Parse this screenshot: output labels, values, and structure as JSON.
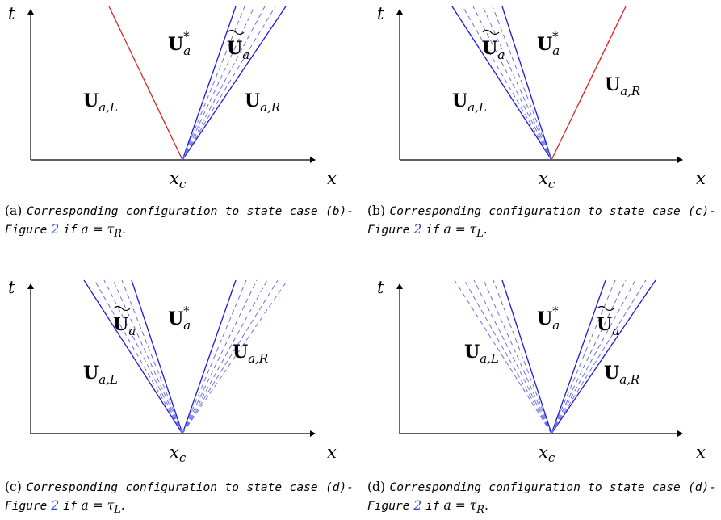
{
  "panels": [
    {
      "id": "a",
      "t_label": "t",
      "x_label": "x",
      "xc_label": "x",
      "xc_sub": "c",
      "regions": {
        "left": {
          "base": "U",
          "sub": "a,L"
        },
        "mid": {
          "base": "U",
          "sub": "a",
          "sup": "*"
        },
        "tilde": {
          "base": "U",
          "sub": "a"
        },
        "right": {
          "base": "U",
          "sub": "a,R"
        }
      },
      "caption": {
        "prefix": "(a)",
        "text": "Corresponding configuration to state case (b)-Figure",
        "ref": "2",
        "cond_pre": "if",
        "cond": "a = τ",
        "cond_sub": "R",
        "end": "."
      }
    },
    {
      "id": "b",
      "t_label": "t",
      "x_label": "x",
      "xc_label": "x",
      "xc_sub": "c",
      "regions": {
        "left": {
          "base": "U",
          "sub": "a,L"
        },
        "mid": {
          "base": "U",
          "sub": "a",
          "sup": "*"
        },
        "tilde": {
          "base": "U",
          "sub": "a"
        },
        "right": {
          "base": "U",
          "sub": "a,R"
        }
      },
      "caption": {
        "prefix": "(b)",
        "text": "Corresponding configuration to state case (c)-Figure",
        "ref": "2",
        "cond_pre": "if",
        "cond": "a = τ",
        "cond_sub": "L",
        "end": "."
      }
    },
    {
      "id": "c",
      "t_label": "t",
      "x_label": "x",
      "xc_label": "x",
      "xc_sub": "c",
      "regions": {
        "left": {
          "base": "U",
          "sub": "a,L"
        },
        "mid": {
          "base": "U",
          "sub": "a",
          "sup": "*"
        },
        "tilde": {
          "base": "U",
          "sub": "a"
        },
        "right": {
          "base": "U",
          "sub": "a,R"
        }
      },
      "caption": {
        "prefix": "(c)",
        "text": "Corresponding configuration to state case (d)-Figure",
        "ref": "2",
        "cond_pre": "if",
        "cond": "a = τ",
        "cond_sub": "L",
        "end": "."
      }
    },
    {
      "id": "d",
      "t_label": "t",
      "x_label": "x",
      "xc_label": "x",
      "xc_sub": "c",
      "regions": {
        "left": {
          "base": "U",
          "sub": "a,L"
        },
        "mid": {
          "base": "U",
          "sub": "a",
          "sup": "*"
        },
        "tilde": {
          "base": "U",
          "sub": "a"
        },
        "right": {
          "base": "U",
          "sub": "a,R"
        }
      },
      "caption": {
        "prefix": "(d)",
        "text": "Corresponding configuration to state case (d)-Figure",
        "ref": "2",
        "cond_pre": "if",
        "cond": "a = τ",
        "cond_sub": "R",
        "end": "."
      }
    }
  ],
  "colors": {
    "shock": "#e02020",
    "rarefaction": "#1a1adf",
    "fan": "#6f6fe8"
  }
}
